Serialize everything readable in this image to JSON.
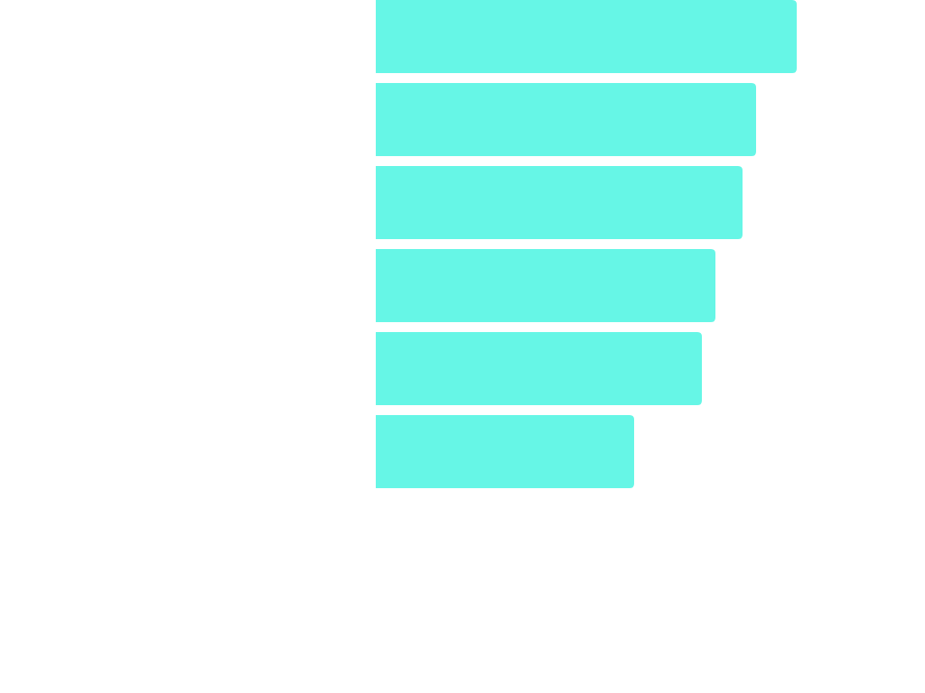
{
  "chart_data": {
    "type": "bar",
    "orientation": "horizontal",
    "categories": [
      "",
      "",
      "",
      "",
      "",
      ""
    ],
    "values": [
      466,
      421,
      406,
      376,
      361,
      286
    ],
    "title": "",
    "xlabel": "",
    "ylabel": "",
    "xlim": [
      0,
      608
    ],
    "grid": false,
    "legend": "none",
    "colors": {
      "bar": "#66f6e6",
      "background": "#ffffff"
    }
  }
}
